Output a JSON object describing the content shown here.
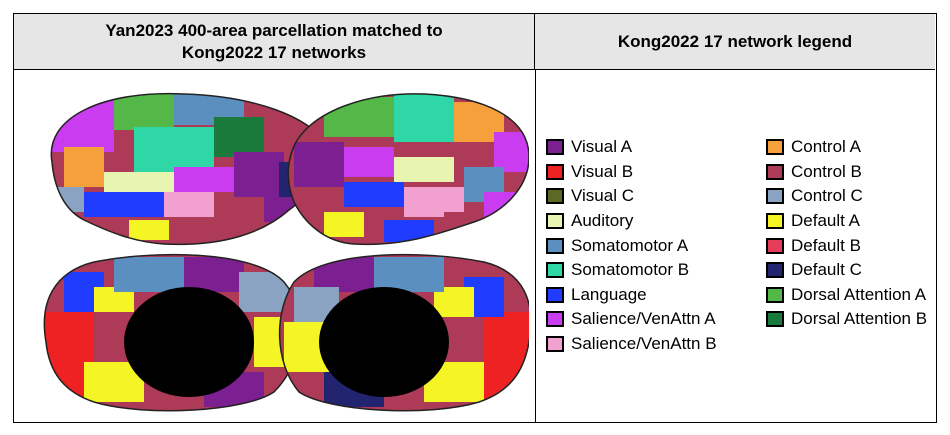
{
  "header": {
    "left_title_line1": "Yan2023 400-area parcellation matched to",
    "left_title_line2": "Kong2022 17 networks",
    "right_title": "Kong2022 17 network legend"
  },
  "legend": {
    "column1": [
      {
        "label": "Visual A",
        "color": "#7b1f91"
      },
      {
        "label": "Visual B",
        "color": "#ee2222"
      },
      {
        "label": "Visual C",
        "color": "#5a6a25"
      },
      {
        "label": "Auditory",
        "color": "#e8f5b0"
      },
      {
        "label": "Somatomotor A",
        "color": "#5b8fc0"
      },
      {
        "label": "Somatomotor B",
        "color": "#2ed7a5"
      },
      {
        "label": "Language",
        "color": "#1f3cff"
      },
      {
        "label": "Salience/VenAttn A",
        "color": "#c93cf0"
      },
      {
        "label": "Salience/VenAttn B",
        "color": "#f2a0d0"
      }
    ],
    "column2": [
      {
        "label": "Control A",
        "color": "#f5a03a"
      },
      {
        "label": "Control B",
        "color": "#ad3a56"
      },
      {
        "label": "Control C",
        "color": "#8aa3c2"
      },
      {
        "label": "Default A",
        "color": "#f5f526"
      },
      {
        "label": "Default B",
        "color": "#e63c5a"
      },
      {
        "label": "Default C",
        "color": "#232470"
      },
      {
        "label": "Dorsal Attention A",
        "color": "#54b848"
      },
      {
        "label": "Dorsal Attention B",
        "color": "#1a7a3c"
      }
    ]
  }
}
